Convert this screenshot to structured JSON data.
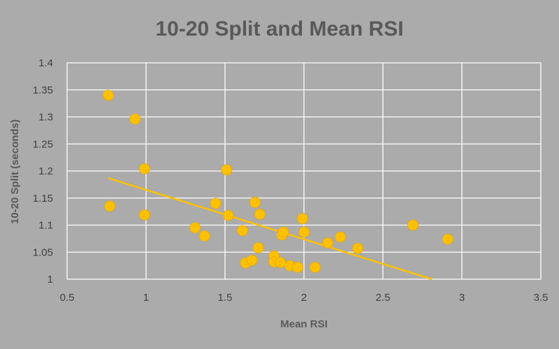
{
  "chart_data": {
    "type": "scatter",
    "title": "10-20 Split and Mean RSI",
    "xlabel": "Mean RSI",
    "ylabel": "10-20 Split (seconds)",
    "xlim": [
      0.5,
      3.5
    ],
    "ylim": [
      1.0,
      1.4
    ],
    "x_ticks": [
      "0.5",
      "1",
      "1.5",
      "2",
      "2.5",
      "3",
      "3.5"
    ],
    "y_ticks": [
      "1",
      "1.05",
      "1.1",
      "1.15",
      "1.2",
      "1.25",
      "1.3",
      "1.35",
      "1.4"
    ],
    "grid": true,
    "legend": "none",
    "colors": {
      "points": "#ffc000",
      "trendline": "#ffc000",
      "plot_background": "#ababab",
      "gridlines": "#ffffff"
    },
    "series": [
      {
        "points": [
          {
            "x": 0.76,
            "y": 1.34
          },
          {
            "x": 0.77,
            "y": 1.135
          },
          {
            "x": 0.93,
            "y": 1.296
          },
          {
            "x": 0.99,
            "y": 1.204
          },
          {
            "x": 0.99,
            "y": 1.119
          },
          {
            "x": 1.31,
            "y": 1.095
          },
          {
            "x": 1.37,
            "y": 1.08
          },
          {
            "x": 1.44,
            "y": 1.14
          },
          {
            "x": 1.51,
            "y": 1.202
          },
          {
            "x": 1.52,
            "y": 1.118
          },
          {
            "x": 1.61,
            "y": 1.09
          },
          {
            "x": 1.63,
            "y": 1.03
          },
          {
            "x": 1.67,
            "y": 1.035
          },
          {
            "x": 1.69,
            "y": 1.142
          },
          {
            "x": 1.71,
            "y": 1.058
          },
          {
            "x": 1.72,
            "y": 1.12
          },
          {
            "x": 1.81,
            "y": 1.043
          },
          {
            "x": 1.81,
            "y": 1.032
          },
          {
            "x": 1.85,
            "y": 1.031
          },
          {
            "x": 1.86,
            "y": 1.082
          },
          {
            "x": 1.87,
            "y": 1.087
          },
          {
            "x": 1.91,
            "y": 1.025
          },
          {
            "x": 1.96,
            "y": 1.022
          },
          {
            "x": 1.99,
            "y": 1.112
          },
          {
            "x": 2.0,
            "y": 1.087
          },
          {
            "x": 2.07,
            "y": 1.022
          },
          {
            "x": 2.15,
            "y": 1.067
          },
          {
            "x": 2.23,
            "y": 1.078
          },
          {
            "x": 2.34,
            "y": 1.057
          },
          {
            "x": 2.69,
            "y": 1.1
          },
          {
            "x": 2.91,
            "y": 1.074
          }
        ]
      }
    ],
    "trendline": {
      "type": "linear",
      "x_start": 0.76,
      "y_start": 1.187,
      "x_end": 2.81,
      "y_end": 1.0
    }
  }
}
